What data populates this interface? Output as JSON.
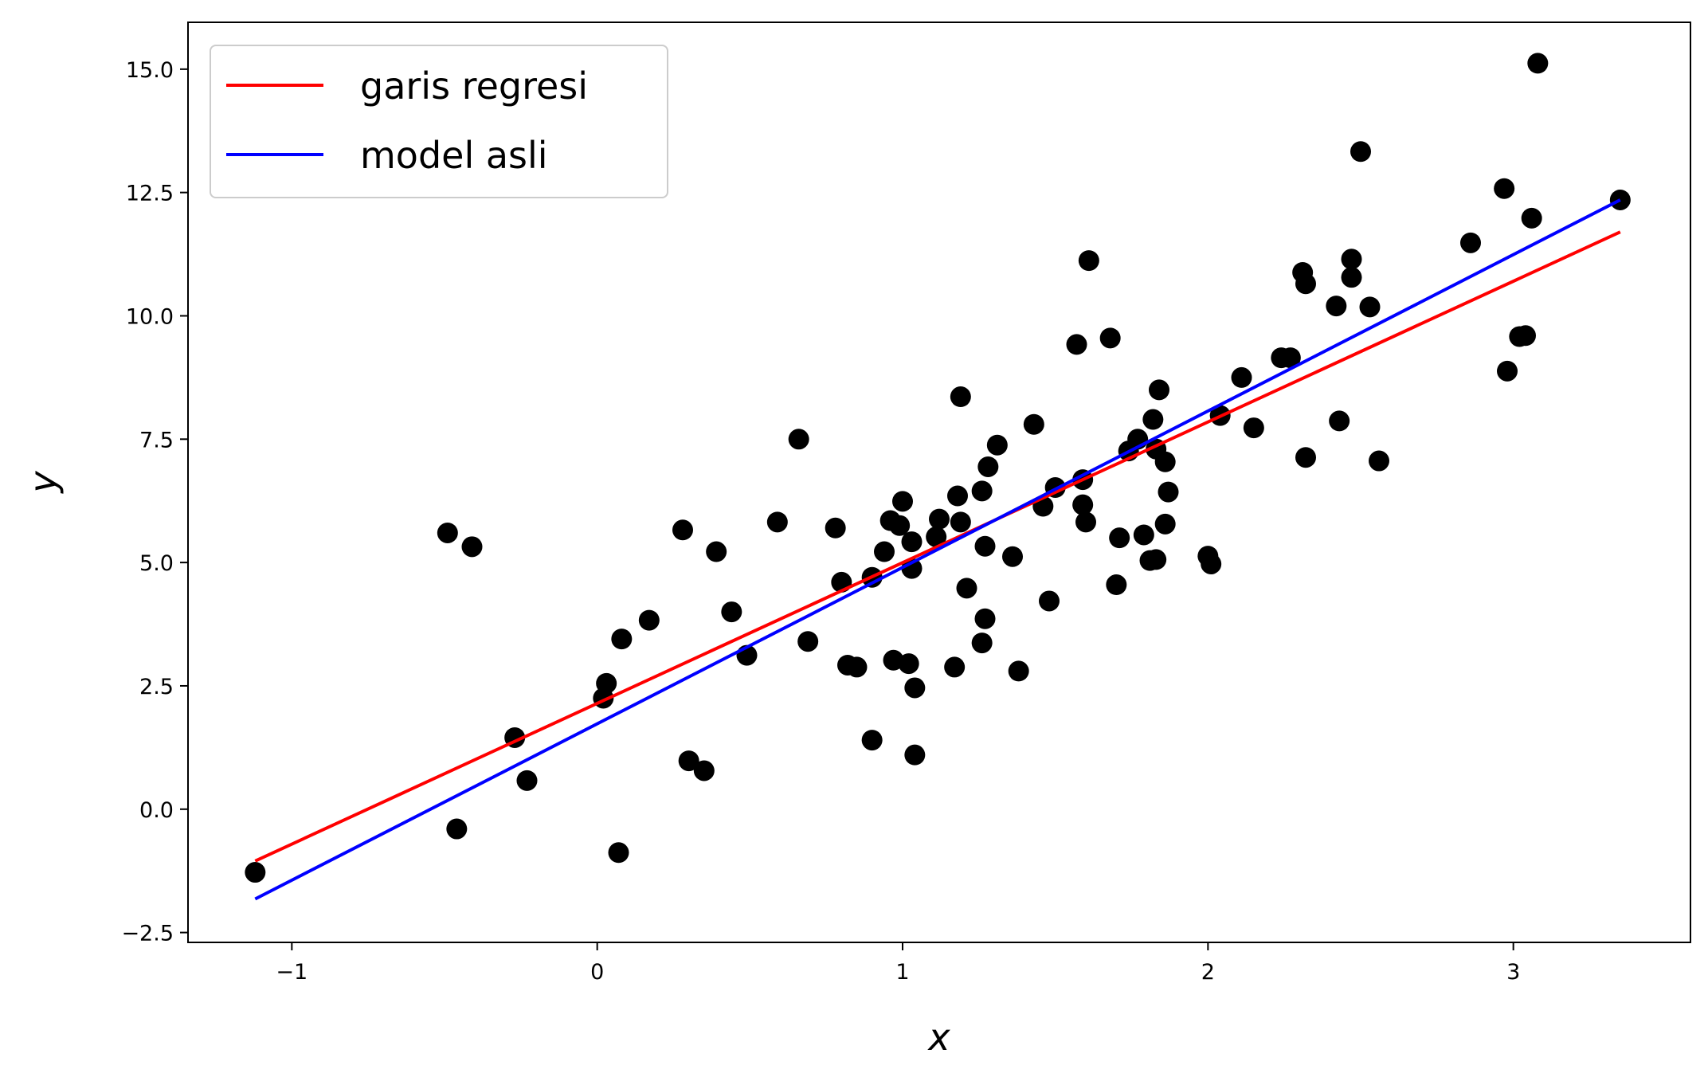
{
  "chart_data": {
    "type": "scatter",
    "title": "",
    "xlabel": "x",
    "ylabel": "y",
    "xlim": [
      -1.34,
      3.58
    ],
    "ylim": [
      -2.7,
      15.95
    ],
    "xticks": [
      -1,
      0,
      1,
      2,
      3
    ],
    "xtick_labels": [
      "−1",
      "0",
      "1",
      "2",
      "3"
    ],
    "yticks": [
      -2.5,
      0.0,
      2.5,
      5.0,
      7.5,
      10.0,
      12.5,
      15.0
    ],
    "ytick_labels": [
      "−2.5",
      "0.0",
      "2.5",
      "5.0",
      "7.5",
      "10.0",
      "12.5",
      "15.0"
    ],
    "grid": false,
    "legend_position": "upper-left",
    "legend": [
      {
        "label": "garis regresi",
        "color": "#ff0000"
      },
      {
        "label": "model asli",
        "color": "#0000ff"
      }
    ],
    "lines": [
      {
        "name": "garis regresi",
        "color": "#ff0000",
        "x": [
          -1.12,
          3.35
        ],
        "y": [
          -1.05,
          11.7
        ]
      },
      {
        "name": "model asli",
        "color": "#0000ff",
        "x": [
          -1.12,
          3.35
        ],
        "y": [
          -1.82,
          12.35
        ]
      }
    ],
    "points_color": "#000000",
    "points": [
      [
        -1.12,
        -1.28
      ],
      [
        -0.49,
        5.6
      ],
      [
        -0.41,
        5.32
      ],
      [
        -0.46,
        -0.4
      ],
      [
        -0.27,
        1.45
      ],
      [
        -0.23,
        0.58
      ],
      [
        0.02,
        2.25
      ],
      [
        0.03,
        2.55
      ],
      [
        0.07,
        -0.88
      ],
      [
        0.08,
        3.45
      ],
      [
        0.17,
        3.83
      ],
      [
        0.28,
        5.66
      ],
      [
        0.3,
        0.98
      ],
      [
        0.35,
        0.78
      ],
      [
        0.39,
        5.22
      ],
      [
        0.44,
        4.0
      ],
      [
        0.49,
        3.12
      ],
      [
        0.59,
        5.82
      ],
      [
        0.66,
        7.5
      ],
      [
        0.69,
        3.4
      ],
      [
        0.78,
        5.7
      ],
      [
        0.8,
        4.6
      ],
      [
        0.82,
        2.92
      ],
      [
        0.85,
        2.88
      ],
      [
        0.9,
        1.4
      ],
      [
        0.9,
        4.7
      ],
      [
        0.94,
        5.22
      ],
      [
        0.96,
        5.85
      ],
      [
        0.97,
        3.02
      ],
      [
        0.99,
        5.75
      ],
      [
        1.0,
        6.24
      ],
      [
        1.02,
        2.95
      ],
      [
        1.03,
        4.88
      ],
      [
        1.03,
        5.42
      ],
      [
        1.04,
        2.46
      ],
      [
        1.04,
        1.1
      ],
      [
        1.11,
        5.52
      ],
      [
        1.12,
        5.88
      ],
      [
        1.17,
        2.88
      ],
      [
        1.18,
        6.35
      ],
      [
        1.19,
        5.82
      ],
      [
        1.19,
        8.36
      ],
      [
        1.21,
        4.48
      ],
      [
        1.26,
        6.45
      ],
      [
        1.26,
        3.37
      ],
      [
        1.27,
        3.86
      ],
      [
        1.27,
        5.33
      ],
      [
        1.28,
        6.94
      ],
      [
        1.31,
        7.38
      ],
      [
        1.36,
        5.12
      ],
      [
        1.38,
        2.8
      ],
      [
        1.43,
        7.8
      ],
      [
        1.46,
        6.14
      ],
      [
        1.48,
        4.22
      ],
      [
        1.5,
        6.52
      ],
      [
        1.57,
        9.42
      ],
      [
        1.59,
        6.68
      ],
      [
        1.59,
        6.17
      ],
      [
        1.6,
        5.82
      ],
      [
        1.61,
        11.12
      ],
      [
        1.68,
        9.55
      ],
      [
        1.7,
        4.55
      ],
      [
        1.71,
        5.5
      ],
      [
        1.74,
        7.26
      ],
      [
        1.77,
        7.5
      ],
      [
        1.79,
        5.56
      ],
      [
        1.81,
        5.04
      ],
      [
        1.82,
        7.9
      ],
      [
        1.83,
        5.06
      ],
      [
        1.83,
        7.3
      ],
      [
        1.84,
        8.5
      ],
      [
        1.86,
        7.04
      ],
      [
        1.86,
        5.78
      ],
      [
        1.87,
        6.43
      ],
      [
        2.0,
        5.13
      ],
      [
        2.01,
        4.97
      ],
      [
        2.04,
        7.98
      ],
      [
        2.11,
        8.75
      ],
      [
        2.15,
        7.73
      ],
      [
        2.24,
        9.15
      ],
      [
        2.27,
        9.15
      ],
      [
        2.31,
        10.88
      ],
      [
        2.32,
        10.65
      ],
      [
        2.32,
        7.13
      ],
      [
        2.42,
        10.2
      ],
      [
        2.43,
        7.87
      ],
      [
        2.47,
        11.15
      ],
      [
        2.47,
        10.78
      ],
      [
        2.5,
        13.33
      ],
      [
        2.53,
        10.18
      ],
      [
        2.56,
        7.06
      ],
      [
        2.86,
        11.48
      ],
      [
        2.97,
        12.58
      ],
      [
        2.98,
        8.88
      ],
      [
        3.02,
        9.58
      ],
      [
        3.04,
        9.6
      ],
      [
        3.06,
        11.98
      ],
      [
        3.08,
        15.12
      ],
      [
        3.35,
        12.35
      ]
    ]
  }
}
